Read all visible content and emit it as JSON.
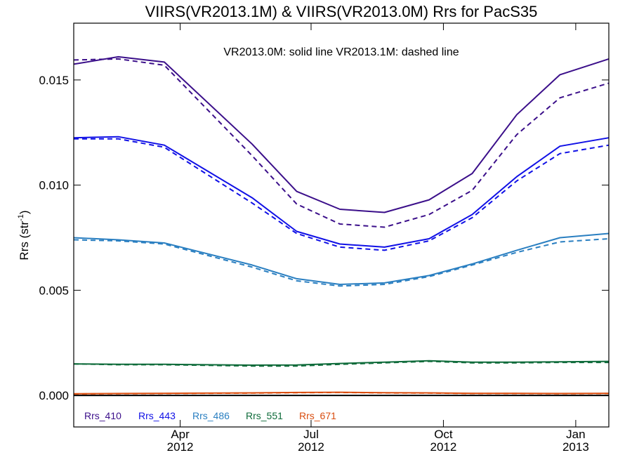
{
  "chart_data": {
    "type": "line",
    "title": "VIIRS(VR2013.1M) & VIIRS(VR2013.0M)  Rrs for PacS35",
    "ylabel": "Rrs (str",
    "ylabel_sup": "-1",
    "ylabel_close": ")",
    "annotation": "VR2013.0M: solid line   VR2013.1M: dashed line",
    "ylim": [
      -0.0015,
      0.0177
    ],
    "xlim": [
      "2012-01-18",
      "2013-01-24"
    ],
    "yticks": [
      0.0,
      0.005,
      0.01,
      0.015
    ],
    "ytick_labels": [
      "0.000",
      "0.005",
      "0.010",
      "0.015"
    ],
    "xticks": [
      {
        "date": "2012-04-01",
        "month": "Apr",
        "year": "2012"
      },
      {
        "date": "2012-07-01",
        "month": "Jul",
        "year": "2012"
      },
      {
        "date": "2012-10-01",
        "month": "Oct",
        "year": "2012"
      },
      {
        "date": "2013-01-01",
        "month": "Jan",
        "year": "2013"
      }
    ],
    "zero_line": true,
    "legend_placement": "bottom-left",
    "x": [
      "2012-01-18",
      "2012-02-18",
      "2012-03-21",
      "2012-05-21",
      "2012-06-21",
      "2012-07-21",
      "2012-08-21",
      "2012-09-21",
      "2012-10-21",
      "2012-11-21",
      "2012-12-21",
      "2013-01-24"
    ],
    "series": [
      {
        "name": "Rrs_410",
        "color": "#3b0f8a",
        "style": "solid",
        "values": [
          0.01575,
          0.0161,
          0.01585,
          0.01195,
          0.0097,
          0.00885,
          0.0087,
          0.0093,
          0.01055,
          0.01335,
          0.01525,
          0.016
        ]
      },
      {
        "name": "Rrs_410",
        "color": "#3b0f8a",
        "style": "dashed",
        "values": [
          0.01595,
          0.016,
          0.0157,
          0.0114,
          0.0091,
          0.00815,
          0.008,
          0.0086,
          0.00975,
          0.0124,
          0.01415,
          0.01485
        ]
      },
      {
        "name": "Rrs_443",
        "color": "#1010e6",
        "style": "solid",
        "values": [
          0.01225,
          0.0123,
          0.0119,
          0.0094,
          0.0078,
          0.0072,
          0.00705,
          0.00745,
          0.0086,
          0.0104,
          0.01185,
          0.01225
        ]
      },
      {
        "name": "Rrs_443",
        "color": "#1010e6",
        "style": "dashed",
        "values": [
          0.0122,
          0.0122,
          0.0118,
          0.00915,
          0.0077,
          0.00705,
          0.0069,
          0.00735,
          0.00845,
          0.0102,
          0.0115,
          0.0119
        ]
      },
      {
        "name": "Rrs_486",
        "color": "#2a7fc1",
        "style": "solid",
        "values": [
          0.0075,
          0.0074,
          0.00725,
          0.0062,
          0.00555,
          0.00528,
          0.00535,
          0.0057,
          0.00625,
          0.0069,
          0.0075,
          0.0077
        ]
      },
      {
        "name": "Rrs_486",
        "color": "#2a7fc1",
        "style": "dashed",
        "values": [
          0.0074,
          0.00735,
          0.0072,
          0.0061,
          0.00545,
          0.0052,
          0.00528,
          0.00565,
          0.0062,
          0.0068,
          0.0073,
          0.00745
        ]
      },
      {
        "name": "Rrs_551",
        "color": "#0e6b3a",
        "style": "solid",
        "values": [
          0.0015,
          0.00148,
          0.00148,
          0.00144,
          0.00145,
          0.00152,
          0.00158,
          0.00165,
          0.00158,
          0.00158,
          0.0016,
          0.00162
        ]
      },
      {
        "name": "Rrs_551",
        "color": "#0e6b3a",
        "style": "dashed",
        "values": [
          0.0015,
          0.00146,
          0.00146,
          0.0014,
          0.0014,
          0.00148,
          0.00155,
          0.00162,
          0.00155,
          0.00155,
          0.00157,
          0.00157
        ]
      },
      {
        "name": "Rrs_671",
        "color": "#d94d0f",
        "style": "solid",
        "values": [
          8e-05,
          9e-05,
          0.0001,
          0.00012,
          0.00014,
          0.00015,
          0.00013,
          0.00012,
          0.0001,
          0.0001,
          9e-05,
          0.0001
        ]
      },
      {
        "name": "Rrs_671",
        "color": "#d94d0f",
        "style": "dashed",
        "values": [
          7e-05,
          8e-05,
          9e-05,
          0.00011,
          0.00013,
          0.00014,
          0.00012,
          0.00011,
          9e-05,
          9e-05,
          8e-05,
          9e-05
        ]
      }
    ],
    "legend": [
      {
        "label": "Rrs_410",
        "color": "#3b0f8a"
      },
      {
        "label": "Rrs_443",
        "color": "#1010e6"
      },
      {
        "label": "Rrs_486",
        "color": "#2a7fc1"
      },
      {
        "label": "Rrs_551",
        "color": "#0e6b3a"
      },
      {
        "label": "Rrs_671",
        "color": "#d94d0f"
      }
    ]
  }
}
